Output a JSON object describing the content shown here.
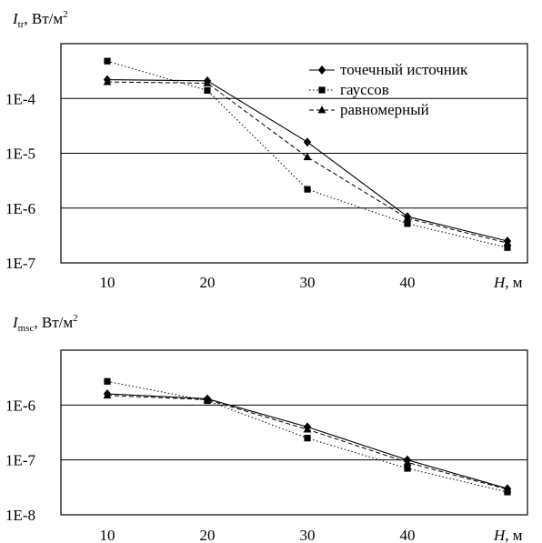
{
  "charts": [
    {
      "ylabel_main": "I",
      "ylabel_sub": "tr",
      "ylabel_unit": ", Вт/м",
      "ylabel_sup": "2",
      "xlabel_main": "H",
      "xlabel_unit": ", м"
    },
    {
      "ylabel_main": "I",
      "ylabel_sub": "msc",
      "ylabel_unit": ", Вт/м",
      "ylabel_sup": "2",
      "xlabel_main": "H",
      "xlabel_unit": ", м"
    }
  ],
  "chart_data": [
    {
      "type": "line",
      "yscale": "log",
      "x": [
        10,
        20,
        30,
        40,
        50
      ],
      "xtick_labels": [
        "10",
        "20",
        "30",
        "40"
      ],
      "ylim": [
        1e-07,
        0.001
      ],
      "ytick_values": [
        1e-07,
        1e-06,
        1e-05,
        0.0001
      ],
      "ytick_labels": [
        "1E-7",
        "1E-6",
        "1E-5",
        "1E-4"
      ],
      "grid": true,
      "legend_position": "top-right",
      "series": [
        {
          "name": "точечный источник",
          "marker": "diamond",
          "line": "solid",
          "values": [
            0.00022,
            0.00021,
            1.6e-05,
            7e-07,
            2.5e-07
          ]
        },
        {
          "name": "гауссов",
          "marker": "square",
          "line": "dotted",
          "values": [
            0.00048,
            0.00014,
            2.2e-06,
            5.2e-07,
            1.9e-07
          ]
        },
        {
          "name": "равномерный",
          "marker": "triangle",
          "line": "dashed",
          "values": [
            0.0002,
            0.00019,
            8.5e-06,
            6.5e-07,
            2.3e-07
          ]
        }
      ]
    },
    {
      "type": "line",
      "yscale": "log",
      "x": [
        10,
        20,
        30,
        40,
        50
      ],
      "xtick_labels": [
        "10",
        "20",
        "30",
        "40"
      ],
      "ylim": [
        1e-08,
        1e-05
      ],
      "ytick_values": [
        1e-08,
        1e-07,
        1e-06
      ],
      "ytick_labels": [
        "1E-8",
        "1E-7",
        "1E-6"
      ],
      "grid": true,
      "series": [
        {
          "name": "точечный источник",
          "marker": "diamond",
          "line": "solid",
          "values": [
            1.6e-06,
            1.3e-06,
            4e-07,
            1e-07,
            3e-08
          ]
        },
        {
          "name": "гауссов",
          "marker": "square",
          "line": "dotted",
          "values": [
            2.7e-06,
            1.2e-06,
            2.5e-07,
            7e-08,
            2.6e-08
          ]
        },
        {
          "name": "равномерный",
          "marker": "triangle",
          "line": "dashed",
          "values": [
            1.5e-06,
            1.25e-06,
            3.6e-07,
            9e-08,
            2.9e-08
          ]
        }
      ]
    }
  ]
}
